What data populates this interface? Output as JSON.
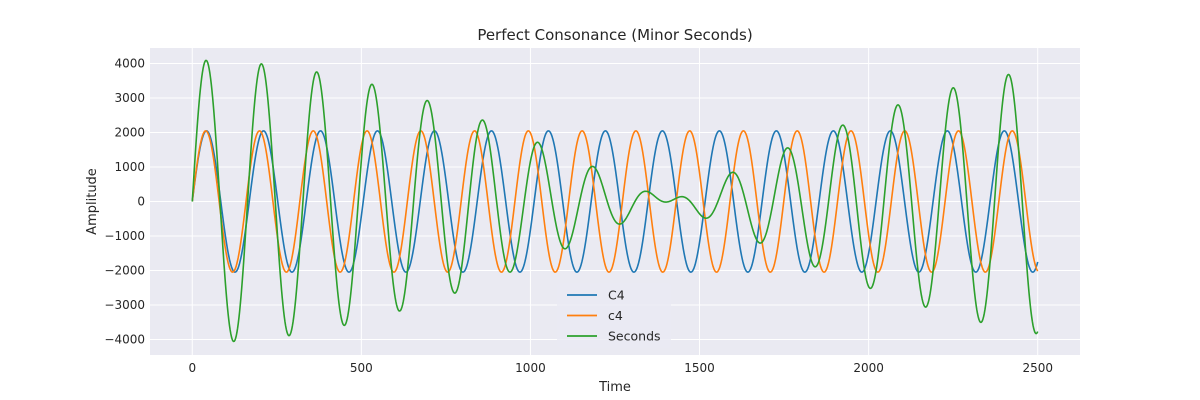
{
  "chart_data": {
    "type": "line",
    "title": "Perfect Consonance (Minor Seconds)",
    "xlabel": "Time",
    "ylabel": "Amplitude",
    "xlim": [
      -125,
      2625
    ],
    "ylim": [
      -4450,
      4450
    ],
    "xticks": [
      0,
      500,
      1000,
      1500,
      2000,
      2500
    ],
    "yticks": [
      -4000,
      -3000,
      -2000,
      -1000,
      0,
      1000,
      2000,
      3000,
      4000
    ],
    "grid": true,
    "legend_placement": "lower-center",
    "background": "#eaeaf2",
    "series": [
      {
        "name": "C4",
        "color": "#1f77b4",
        "amplitude": 2048,
        "period": 168.5,
        "x_range": [
          0,
          2500
        ]
      },
      {
        "name": "c4",
        "color": "#ff7f0e",
        "amplitude": 2048,
        "period": 159.0,
        "x_range": [
          0,
          2500
        ]
      },
      {
        "name": "Seconds",
        "color": "#2ca02c",
        "description": "sum of C4 and c4",
        "x_range": [
          0,
          2500
        ]
      }
    ]
  }
}
